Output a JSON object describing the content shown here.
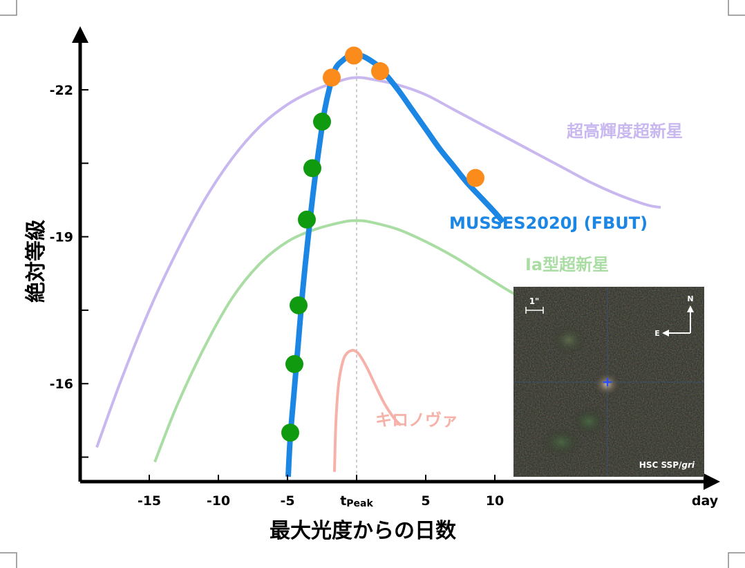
{
  "chart_data": {
    "type": "line",
    "xlabel": "最大光度からの日数",
    "ylabel": "絶対等級",
    "x_unit": "day",
    "xlim": [
      -20,
      25.5
    ],
    "ylim": [
      -14,
      -23.1
    ],
    "y_inverted": true,
    "x_ticks": [
      {
        "value": -15,
        "label": "-15"
      },
      {
        "value": -10,
        "label": "-10"
      },
      {
        "value": -5,
        "label": "-5"
      },
      {
        "value": 0,
        "label": "t",
        "sub": "Peak"
      },
      {
        "value": 5,
        "label": "5"
      },
      {
        "value": 10,
        "label": "10"
      }
    ],
    "y_ticks": [
      {
        "value": -22,
        "label": "-22"
      },
      {
        "value": -19,
        "label": "-19"
      },
      {
        "value": -16,
        "label": "-16"
      }
    ],
    "y_minor_ticks": [
      -14.5,
      -17.5,
      -20.5
    ],
    "peak_guide_x": 0,
    "series": [
      {
        "name": "超高輝度超新星",
        "color": "#c8b8ef",
        "x": [
          -18.8,
          -17,
          -15,
          -13,
          -11,
          -9,
          -7,
          -5,
          -3,
          -1,
          0,
          1,
          3,
          5,
          7,
          9,
          11,
          13,
          15,
          17,
          19,
          21,
          22
        ],
        "y": [
          -14.7,
          -16.1,
          -17.5,
          -18.7,
          -19.75,
          -20.6,
          -21.25,
          -21.7,
          -22.0,
          -22.2,
          -22.25,
          -22.22,
          -22.1,
          -21.9,
          -21.6,
          -21.3,
          -21.0,
          -20.7,
          -20.4,
          -20.1,
          -19.85,
          -19.65,
          -19.6
        ]
      },
      {
        "name": "Ia型超新星",
        "color": "#a9dda3",
        "x": [
          -14.6,
          -13,
          -11,
          -9,
          -7,
          -5,
          -3,
          -1,
          0,
          1,
          3,
          5,
          7,
          9,
          11,
          13,
          15
        ],
        "y": [
          -14.4,
          -15.55,
          -16.75,
          -17.75,
          -18.45,
          -18.9,
          -19.15,
          -19.3,
          -19.33,
          -19.3,
          -19.15,
          -18.9,
          -18.6,
          -18.25,
          -17.9,
          -17.6,
          -17.4
        ]
      },
      {
        "name": "キロノヴァ",
        "color": "#f6b1a8",
        "x": [
          -1.6,
          -1.5,
          -1.3,
          -1.0,
          -0.7,
          -0.3,
          0.0,
          0.3,
          0.8,
          1.3,
          2.0,
          2.7,
          3.2
        ],
        "y": [
          -14.2,
          -15.2,
          -16.0,
          -16.45,
          -16.62,
          -16.68,
          -16.65,
          -16.55,
          -16.3,
          -16.0,
          -15.6,
          -15.3,
          -15.15
        ]
      },
      {
        "name": "MUSSES2020J (FBUT)",
        "color": "#1b86e3",
        "x": [
          -4.95,
          -4.8,
          -4.5,
          -4.2,
          -3.9,
          -3.5,
          -3.1,
          -2.7,
          -2.3,
          -1.9,
          -1.5,
          -1.0,
          -0.5,
          0.0,
          0.5,
          1.0,
          1.5,
          2.0,
          3.0,
          4.0,
          5.0,
          6.0,
          7.0,
          8.0,
          9.0,
          10.0,
          10.6
        ],
        "y": [
          -14.1,
          -14.9,
          -15.9,
          -16.9,
          -17.9,
          -19.0,
          -20.0,
          -20.85,
          -21.6,
          -22.1,
          -22.45,
          -22.6,
          -22.7,
          -22.72,
          -22.68,
          -22.6,
          -22.5,
          -22.35,
          -22.0,
          -21.6,
          -21.2,
          -20.8,
          -20.45,
          -20.1,
          -19.8,
          -19.5,
          -19.3
        ]
      }
    ],
    "points": [
      {
        "x": -4.8,
        "y": -15.0,
        "color": "#109a10"
      },
      {
        "x": -4.5,
        "y": -16.4,
        "color": "#109a10"
      },
      {
        "x": -4.2,
        "y": -17.6,
        "color": "#109a10"
      },
      {
        "x": -3.6,
        "y": -19.35,
        "color": "#109a10"
      },
      {
        "x": -3.2,
        "y": -20.4,
        "color": "#109a10"
      },
      {
        "x": -2.5,
        "y": -21.35,
        "color": "#109a10"
      },
      {
        "x": -1.8,
        "y": -22.25,
        "color": "#fb8c1c"
      },
      {
        "x": -0.2,
        "y": -22.7,
        "color": "#fb8c1c"
      },
      {
        "x": 1.7,
        "y": -22.38,
        "color": "#fb8c1c"
      },
      {
        "x": 8.6,
        "y": -20.2,
        "color": "#fb8c1c"
      }
    ],
    "inset": {
      "scale_label": "1\"",
      "north_label": "N",
      "east_label": "E",
      "caption_prefix": "HSC SSP/",
      "caption_suffix": "gri"
    }
  }
}
